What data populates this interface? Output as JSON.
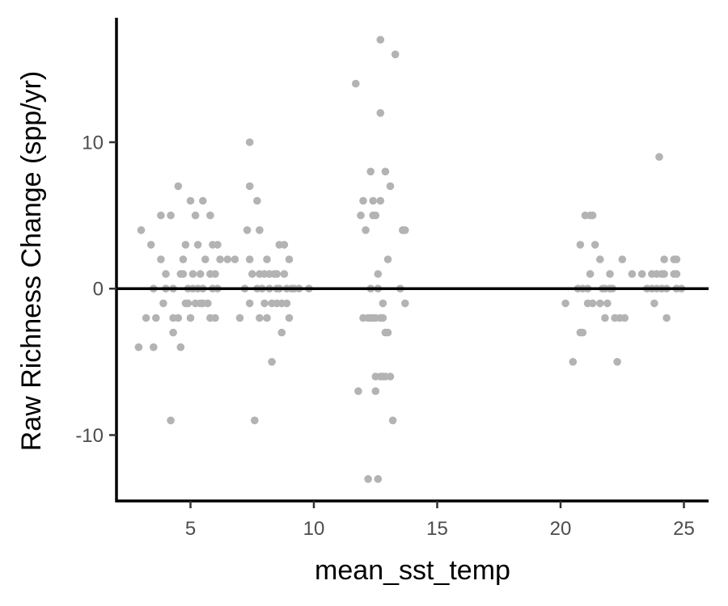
{
  "chart_data": {
    "type": "scatter",
    "title": "",
    "xlabel": "mean_sst_temp",
    "ylabel": "Raw Richness Change (spp/yr)",
    "xlim": [
      2.0,
      26.0
    ],
    "ylim": [
      -14.5,
      18.5
    ],
    "x_ticks": [
      5,
      10,
      15,
      20,
      25
    ],
    "y_ticks": [
      -10,
      0,
      10
    ],
    "reference_line_y": 0,
    "grid": false,
    "point_color": "#b3b3b3",
    "axis_color": "#000000",
    "points": [
      [
        2.9,
        -4
      ],
      [
        3.0,
        4
      ],
      [
        3.2,
        -2
      ],
      [
        3.4,
        3
      ],
      [
        3.5,
        0
      ],
      [
        3.5,
        -4
      ],
      [
        3.6,
        -2
      ],
      [
        3.8,
        5
      ],
      [
        3.8,
        2
      ],
      [
        3.9,
        -1
      ],
      [
        4.0,
        0
      ],
      [
        4.0,
        1
      ],
      [
        4.2,
        5
      ],
      [
        4.2,
        -9
      ],
      [
        4.3,
        0
      ],
      [
        4.3,
        -3
      ],
      [
        4.3,
        -2
      ],
      [
        4.5,
        7
      ],
      [
        4.5,
        -2
      ],
      [
        4.6,
        -4
      ],
      [
        4.6,
        1
      ],
      [
        4.7,
        2
      ],
      [
        4.7,
        1
      ],
      [
        4.8,
        3
      ],
      [
        4.8,
        -1
      ],
      [
        4.9,
        0
      ],
      [
        4.9,
        -1
      ],
      [
        5.0,
        6
      ],
      [
        5.0,
        -2
      ],
      [
        5.1,
        1
      ],
      [
        5.1,
        0
      ],
      [
        5.2,
        5
      ],
      [
        5.2,
        -1
      ],
      [
        5.3,
        3
      ],
      [
        5.3,
        0
      ],
      [
        5.4,
        -1
      ],
      [
        5.4,
        1
      ],
      [
        5.5,
        6
      ],
      [
        5.5,
        0
      ],
      [
        5.5,
        -1
      ],
      [
        5.6,
        2
      ],
      [
        5.7,
        -1
      ],
      [
        5.8,
        5
      ],
      [
        5.8,
        1
      ],
      [
        5.8,
        -2
      ],
      [
        5.9,
        3
      ],
      [
        5.9,
        0
      ],
      [
        6.0,
        1
      ],
      [
        6.0,
        -2
      ],
      [
        6.1,
        3
      ],
      [
        6.1,
        0
      ],
      [
        6.2,
        2
      ],
      [
        6.5,
        2
      ],
      [
        6.8,
        2
      ],
      [
        7.0,
        -2
      ],
      [
        7.2,
        0
      ],
      [
        7.3,
        4
      ],
      [
        7.4,
        10
      ],
      [
        7.4,
        7
      ],
      [
        7.4,
        2
      ],
      [
        7.4,
        -1
      ],
      [
        7.5,
        1
      ],
      [
        7.6,
        -9
      ],
      [
        7.7,
        0
      ],
      [
        7.7,
        6
      ],
      [
        7.8,
        1
      ],
      [
        7.8,
        -2
      ],
      [
        7.8,
        4
      ],
      [
        7.9,
        0
      ],
      [
        8.0,
        1
      ],
      [
        8.0,
        -1
      ],
      [
        8.1,
        -2
      ],
      [
        8.1,
        2
      ],
      [
        8.2,
        1
      ],
      [
        8.2,
        0
      ],
      [
        8.3,
        -5
      ],
      [
        8.3,
        -1
      ],
      [
        8.4,
        1
      ],
      [
        8.5,
        0
      ],
      [
        8.5,
        -1
      ],
      [
        8.5,
        1
      ],
      [
        8.6,
        3
      ],
      [
        8.6,
        0
      ],
      [
        8.7,
        -3
      ],
      [
        8.7,
        -1
      ],
      [
        8.8,
        3
      ],
      [
        8.8,
        1
      ],
      [
        8.9,
        0
      ],
      [
        8.9,
        -1
      ],
      [
        9.0,
        -2
      ],
      [
        9.0,
        2
      ],
      [
        9.1,
        0
      ],
      [
        9.2,
        0
      ],
      [
        9.4,
        0
      ],
      [
        9.8,
        0
      ],
      [
        11.7,
        14
      ],
      [
        11.8,
        -7
      ],
      [
        11.9,
        5
      ],
      [
        12.0,
        6
      ],
      [
        12.0,
        -2
      ],
      [
        12.1,
        4
      ],
      [
        12.2,
        -2
      ],
      [
        12.2,
        -13
      ],
      [
        12.3,
        -2
      ],
      [
        12.3,
        8
      ],
      [
        12.3,
        0
      ],
      [
        12.4,
        6
      ],
      [
        12.4,
        -2
      ],
      [
        12.4,
        5
      ],
      [
        12.5,
        -6
      ],
      [
        12.5,
        -7
      ],
      [
        12.5,
        5
      ],
      [
        12.5,
        -2
      ],
      [
        12.6,
        1
      ],
      [
        12.6,
        0
      ],
      [
        12.6,
        -13
      ],
      [
        12.7,
        17
      ],
      [
        12.7,
        12
      ],
      [
        12.7,
        6
      ],
      [
        12.7,
        -2
      ],
      [
        12.7,
        -6
      ],
      [
        12.8,
        -1
      ],
      [
        12.8,
        -2
      ],
      [
        12.8,
        -6
      ],
      [
        12.9,
        8
      ],
      [
        12.9,
        -3
      ],
      [
        12.9,
        -6
      ],
      [
        13.0,
        2
      ],
      [
        13.0,
        -3
      ],
      [
        13.1,
        7
      ],
      [
        13.1,
        -6
      ],
      [
        13.2,
        -9
      ],
      [
        13.3,
        16
      ],
      [
        13.5,
        0
      ],
      [
        13.6,
        4
      ],
      [
        13.7,
        -1
      ],
      [
        13.7,
        4
      ],
      [
        20.2,
        -1
      ],
      [
        20.5,
        -5
      ],
      [
        20.7,
        0
      ],
      [
        20.8,
        3
      ],
      [
        20.8,
        -3
      ],
      [
        20.9,
        -3
      ],
      [
        20.9,
        0
      ],
      [
        21.0,
        5
      ],
      [
        21.1,
        0
      ],
      [
        21.1,
        -1
      ],
      [
        21.2,
        5
      ],
      [
        21.2,
        1
      ],
      [
        21.3,
        5
      ],
      [
        21.3,
        -1
      ],
      [
        21.4,
        3
      ],
      [
        21.6,
        -1
      ],
      [
        21.6,
        2
      ],
      [
        21.7,
        0
      ],
      [
        21.8,
        0
      ],
      [
        21.8,
        -2
      ],
      [
        21.9,
        -1
      ],
      [
        22.0,
        1
      ],
      [
        22.0,
        0
      ],
      [
        22.1,
        0
      ],
      [
        22.2,
        -2
      ],
      [
        22.3,
        -5
      ],
      [
        22.4,
        -2
      ],
      [
        22.5,
        2
      ],
      [
        22.6,
        -2
      ],
      [
        22.9,
        1
      ],
      [
        23.3,
        1
      ],
      [
        23.5,
        0
      ],
      [
        23.7,
        0
      ],
      [
        23.7,
        1
      ],
      [
        23.8,
        -1
      ],
      [
        23.9,
        0
      ],
      [
        23.9,
        1
      ],
      [
        24.0,
        9
      ],
      [
        24.1,
        1
      ],
      [
        24.1,
        0
      ],
      [
        24.2,
        2
      ],
      [
        24.2,
        1
      ],
      [
        24.3,
        0
      ],
      [
        24.3,
        -2
      ],
      [
        24.6,
        1
      ],
      [
        24.6,
        2
      ],
      [
        24.7,
        0
      ],
      [
        24.7,
        2
      ],
      [
        24.7,
        1
      ],
      [
        24.9,
        0
      ]
    ]
  }
}
